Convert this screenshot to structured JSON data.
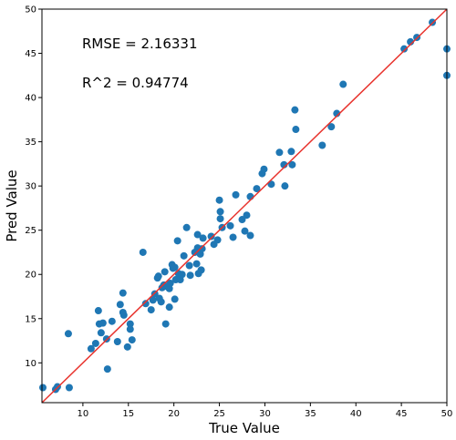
{
  "chart_data": {
    "type": "scatter",
    "title": "",
    "xlabel": "True Value",
    "ylabel": "Pred Value",
    "xlim": [
      5.5,
      50
    ],
    "ylim": [
      5.5,
      50
    ],
    "xticks": [
      10,
      15,
      20,
      25,
      30,
      35,
      40,
      45,
      50
    ],
    "yticks": [
      10,
      15,
      20,
      25,
      30,
      35,
      40,
      45,
      50
    ],
    "grid": false,
    "point_color": "#1f77b4",
    "line_color": "#e8322c",
    "reference_line": {
      "from": [
        5.5,
        5.5
      ],
      "to": [
        50,
        50
      ]
    },
    "annotations": [
      "RMSE = 2.16331",
      "R^2 = 0.94774"
    ],
    "points": [
      [
        5.6,
        7.2
      ],
      [
        7.0,
        7.0
      ],
      [
        7.2,
        7.3
      ],
      [
        8.5,
        7.2
      ],
      [
        8.4,
        13.3
      ],
      [
        10.9,
        11.6
      ],
      [
        11.4,
        12.2
      ],
      [
        11.7,
        15.9
      ],
      [
        11.8,
        14.4
      ],
      [
        12.0,
        13.4
      ],
      [
        12.2,
        14.5
      ],
      [
        12.6,
        12.7
      ],
      [
        12.7,
        9.3
      ],
      [
        13.2,
        14.7
      ],
      [
        13.8,
        12.4
      ],
      [
        14.1,
        16.6
      ],
      [
        14.4,
        15.7
      ],
      [
        14.5,
        15.4
      ],
      [
        14.4,
        17.9
      ],
      [
        14.9,
        11.8
      ],
      [
        15.2,
        14.4
      ],
      [
        15.2,
        13.8
      ],
      [
        15.4,
        12.6
      ],
      [
        16.6,
        22.5
      ],
      [
        16.9,
        16.7
      ],
      [
        17.5,
        16.0
      ],
      [
        17.7,
        17.1
      ],
      [
        17.9,
        17.8
      ],
      [
        18.2,
        19.6
      ],
      [
        18.3,
        19.8
      ],
      [
        18.4,
        17.3
      ],
      [
        18.6,
        16.9
      ],
      [
        18.7,
        18.5
      ],
      [
        18.9,
        18.8
      ],
      [
        19.0,
        20.3
      ],
      [
        19.1,
        14.4
      ],
      [
        19.3,
        18.6
      ],
      [
        19.5,
        18.4
      ],
      [
        19.5,
        16.3
      ],
      [
        19.6,
        19.0
      ],
      [
        19.8,
        21.1
      ],
      [
        19.9,
        20.7
      ],
      [
        20.1,
        20.8
      ],
      [
        20.1,
        17.2
      ],
      [
        20.2,
        19.4
      ],
      [
        20.4,
        23.8
      ],
      [
        20.5,
        20.1
      ],
      [
        20.7,
        19.4
      ],
      [
        20.9,
        20.0
      ],
      [
        21.1,
        22.1
      ],
      [
        21.4,
        25.3
      ],
      [
        21.7,
        21.0
      ],
      [
        21.8,
        19.9
      ],
      [
        22.3,
        22.5
      ],
      [
        22.5,
        21.2
      ],
      [
        22.6,
        23.0
      ],
      [
        22.6,
        24.5
      ],
      [
        22.7,
        20.1
      ],
      [
        22.9,
        22.3
      ],
      [
        23.0,
        20.5
      ],
      [
        23.1,
        22.9
      ],
      [
        23.2,
        24.1
      ],
      [
        24.1,
        24.3
      ],
      [
        24.4,
        23.4
      ],
      [
        24.8,
        23.9
      ],
      [
        25.0,
        28.4
      ],
      [
        25.1,
        27.1
      ],
      [
        25.1,
        26.3
      ],
      [
        25.3,
        25.3
      ],
      [
        26.2,
        25.5
      ],
      [
        26.5,
        24.2
      ],
      [
        26.8,
        29.0
      ],
      [
        27.5,
        26.2
      ],
      [
        27.8,
        24.9
      ],
      [
        28.0,
        26.7
      ],
      [
        28.4,
        24.4
      ],
      [
        28.4,
        28.8
      ],
      [
        29.1,
        29.7
      ],
      [
        29.7,
        31.4
      ],
      [
        29.9,
        31.9
      ],
      [
        30.7,
        30.2
      ],
      [
        31.6,
        33.8
      ],
      [
        32.1,
        32.4
      ],
      [
        32.2,
        30.0
      ],
      [
        32.9,
        33.9
      ],
      [
        33.0,
        32.4
      ],
      [
        33.3,
        38.6
      ],
      [
        33.4,
        36.4
      ],
      [
        36.3,
        34.6
      ],
      [
        37.3,
        36.7
      ],
      [
        37.9,
        38.2
      ],
      [
        38.6,
        41.5
      ],
      [
        45.3,
        45.5
      ],
      [
        46.0,
        46.3
      ],
      [
        46.7,
        46.8
      ],
      [
        48.4,
        48.5
      ],
      [
        50.0,
        45.5
      ],
      [
        50.0,
        42.5
      ]
    ]
  }
}
